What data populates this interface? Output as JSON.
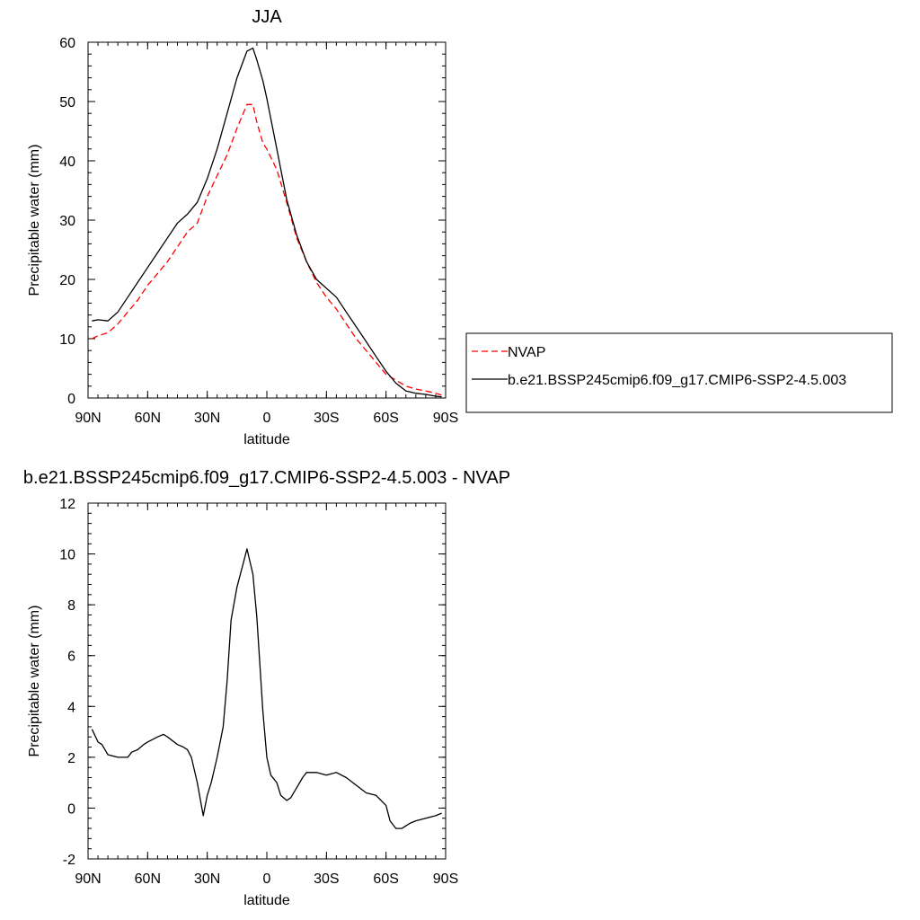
{
  "chart_data": [
    {
      "type": "line",
      "title": "JJA",
      "xlabel": "latitude",
      "ylabel": "Precipitable water (mm)",
      "xlim": [
        90,
        -90
      ],
      "ylim": [
        0,
        60
      ],
      "xticks": [
        {
          "value": 90,
          "label": "90N"
        },
        {
          "value": 60,
          "label": "60N"
        },
        {
          "value": 30,
          "label": "30N"
        },
        {
          "value": 0,
          "label": "0"
        },
        {
          "value": -30,
          "label": "30S"
        },
        {
          "value": -60,
          "label": "60S"
        },
        {
          "value": -90,
          "label": "90S"
        }
      ],
      "yticks": [
        0,
        10,
        20,
        30,
        40,
        50,
        60
      ],
      "legend_position": "right",
      "grid": false,
      "series": [
        {
          "name": "NVAP",
          "color": "#ff0000",
          "dash": "dashed",
          "x": [
            88,
            85,
            80,
            75,
            70,
            65,
            60,
            55,
            50,
            45,
            40,
            35,
            30,
            25,
            20,
            15,
            10,
            7,
            5,
            2,
            0,
            -5,
            -10,
            -15,
            -20,
            -25,
            -30,
            -35,
            -40,
            -45,
            -50,
            -55,
            -60,
            -65,
            -70,
            -75,
            -80,
            -85,
            -88
          ],
          "y": [
            10,
            10.5,
            11,
            12.5,
            14.5,
            16.5,
            19,
            21,
            23,
            25.5,
            28,
            29.5,
            34,
            37.5,
            41,
            45.5,
            49.5,
            49.5,
            46.5,
            43,
            42,
            38.5,
            33,
            27,
            23,
            19.5,
            17,
            15,
            12.5,
            10,
            8,
            6,
            4,
            3,
            2,
            1.5,
            1.2,
            0.8,
            0.5
          ]
        },
        {
          "name": "b.e21.BSSP245cmip6.f09_g17.CMIP6-SSP2-4.5.003",
          "color": "#000000",
          "dash": "solid",
          "x": [
            88,
            85,
            80,
            75,
            70,
            65,
            60,
            55,
            50,
            45,
            40,
            35,
            30,
            25,
            20,
            15,
            10,
            7,
            5,
            2,
            0,
            -5,
            -10,
            -15,
            -20,
            -25,
            -30,
            -35,
            -40,
            -45,
            -50,
            -55,
            -60,
            -65,
            -70,
            -75,
            -80,
            -85,
            -88
          ],
          "y": [
            13,
            13.2,
            13,
            14.5,
            17,
            19.5,
            22,
            24.5,
            27,
            29.5,
            31,
            33,
            37,
            42,
            48,
            54,
            58.5,
            59,
            57,
            53.5,
            50.5,
            42,
            33.5,
            27.5,
            23,
            20,
            18.5,
            17,
            14.5,
            12,
            9.5,
            7,
            4.5,
            2.5,
            1.2,
            0.8,
            0.6,
            0.3,
            0.2
          ]
        }
      ]
    },
    {
      "type": "line",
      "title": "b.e21.BSSP245cmip6.f09_g17.CMIP6-SSP2-4.5.003 - NVAP",
      "xlabel": "latitude",
      "ylabel": "Precipitable water (mm)",
      "xlim": [
        90,
        -90
      ],
      "ylim": [
        -2,
        12
      ],
      "xticks": [
        {
          "value": 90,
          "label": "90N"
        },
        {
          "value": 60,
          "label": "60N"
        },
        {
          "value": 30,
          "label": "30N"
        },
        {
          "value": 0,
          "label": "0"
        },
        {
          "value": -30,
          "label": "30S"
        },
        {
          "value": -60,
          "label": "60S"
        },
        {
          "value": -90,
          "label": "90S"
        }
      ],
      "yticks": [
        -2,
        0,
        2,
        4,
        6,
        8,
        10,
        12
      ],
      "grid": false,
      "series": [
        {
          "color": "#000000",
          "dash": "solid",
          "x": [
            88,
            85,
            83,
            80,
            75,
            70,
            68,
            65,
            62,
            60,
            55,
            52,
            50,
            45,
            42,
            40,
            38,
            35,
            32,
            30,
            28,
            25,
            22,
            20,
            18,
            15,
            12,
            10,
            7,
            5,
            2,
            0,
            -2,
            -5,
            -7,
            -10,
            -12,
            -15,
            -18,
            -20,
            -25,
            -30,
            -35,
            -40,
            -45,
            -50,
            -55,
            -60,
            -62,
            -65,
            -68,
            -70,
            -72,
            -75,
            -80,
            -85,
            -88
          ],
          "y": [
            3.1,
            2.6,
            2.5,
            2.1,
            2.0,
            2.0,
            2.2,
            2.3,
            2.5,
            2.6,
            2.8,
            2.9,
            2.8,
            2.5,
            2.4,
            2.3,
            2.0,
            1.0,
            -0.3,
            0.5,
            1.0,
            2.0,
            3.2,
            5.0,
            7.4,
            8.7,
            9.6,
            10.2,
            9.2,
            7.5,
            3.8,
            2.0,
            1.3,
            1.0,
            0.5,
            0.3,
            0.4,
            0.8,
            1.2,
            1.4,
            1.4,
            1.3,
            1.4,
            1.2,
            0.9,
            0.6,
            0.5,
            0.1,
            -0.5,
            -0.8,
            -0.8,
            -0.7,
            -0.6,
            -0.5,
            -0.4,
            -0.3,
            -0.2
          ]
        }
      ]
    }
  ]
}
